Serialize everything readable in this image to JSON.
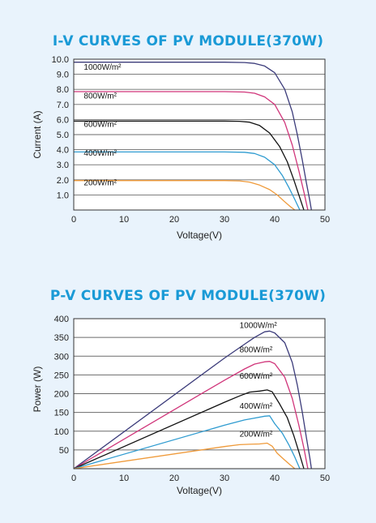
{
  "chart_data": [
    {
      "id": "iv",
      "type": "line",
      "title": "I-V CURVES OF PV MODULE(370W)",
      "xlabel": "Voltage(V)",
      "ylabel": "Current (A)",
      "xlim": [
        0,
        50
      ],
      "ylim": [
        0,
        10
      ],
      "xticks": [
        "0",
        "10",
        "20",
        "30",
        "40",
        "50"
      ],
      "yticks": [
        "1.0",
        "2.0",
        "3.0",
        "4.0",
        "5.0",
        "6.0",
        "7.0",
        "8.0",
        "9.0",
        "10.0"
      ],
      "grid": "horizontal",
      "series": [
        {
          "name": "1000W/m²",
          "color": "#3b3b7a",
          "label_x": 2,
          "label_y": 9.3,
          "points": [
            [
              0,
              9.8
            ],
            [
              30,
              9.8
            ],
            [
              34,
              9.78
            ],
            [
              36,
              9.72
            ],
            [
              38,
              9.55
            ],
            [
              40,
              9.1
            ],
            [
              42,
              8.0
            ],
            [
              43.5,
              6.5
            ],
            [
              44.5,
              5.0
            ],
            [
              45.5,
              3.3
            ],
            [
              46.3,
              1.8
            ],
            [
              47,
              0.6
            ],
            [
              47.3,
              0
            ]
          ]
        },
        {
          "name": "800W/m²",
          "color": "#d0357a",
          "label_x": 2,
          "label_y": 7.4,
          "points": [
            [
              0,
              7.85
            ],
            [
              30,
              7.85
            ],
            [
              34,
              7.82
            ],
            [
              36,
              7.74
            ],
            [
              38,
              7.5
            ],
            [
              40,
              7.0
            ],
            [
              42,
              5.8
            ],
            [
              43.5,
              4.3
            ],
            [
              44.8,
              2.6
            ],
            [
              45.8,
              1.2
            ],
            [
              46.6,
              0
            ]
          ]
        },
        {
          "name": "600W/m²",
          "color": "#111111",
          "label_x": 2,
          "label_y": 5.5,
          "points": [
            [
              0,
              5.9
            ],
            [
              30,
              5.9
            ],
            [
              33,
              5.88
            ],
            [
              35,
              5.82
            ],
            [
              37,
              5.6
            ],
            [
              39,
              5.1
            ],
            [
              41,
              4.2
            ],
            [
              42.5,
              3.2
            ],
            [
              43.8,
              2.0
            ],
            [
              44.8,
              1.0
            ],
            [
              45.8,
              0
            ]
          ]
        },
        {
          "name": "400W/m²",
          "color": "#2e9bd0",
          "label_x": 2,
          "label_y": 3.6,
          "points": [
            [
              0,
              3.85
            ],
            [
              30,
              3.85
            ],
            [
              34,
              3.83
            ],
            [
              36,
              3.75
            ],
            [
              38,
              3.5
            ],
            [
              40,
              3.0
            ],
            [
              41.5,
              2.3
            ],
            [
              42.8,
              1.5
            ],
            [
              44,
              0.7
            ],
            [
              45,
              0
            ]
          ]
        },
        {
          "name": "200W/m²",
          "color": "#ef9a3a",
          "label_x": 2,
          "label_y": 1.65,
          "points": [
            [
              0,
              1.95
            ],
            [
              30,
              1.95
            ],
            [
              33,
              1.93
            ],
            [
              35,
              1.85
            ],
            [
              37,
              1.65
            ],
            [
              39,
              1.35
            ],
            [
              40.5,
              1.0
            ],
            [
              41.8,
              0.6
            ],
            [
              43,
              0.25
            ],
            [
              44,
              0
            ]
          ]
        }
      ]
    },
    {
      "id": "pv",
      "type": "line",
      "title": "P-V CURVES OF PV MODULE(370W)",
      "xlabel": "Voltage(V)",
      "ylabel": "Power (W)",
      "xlim": [
        0,
        50
      ],
      "ylim": [
        0,
        400
      ],
      "xticks": [
        "0",
        "10",
        "20",
        "30",
        "40",
        "50"
      ],
      "yticks": [
        "50",
        "100",
        "150",
        "200",
        "250",
        "300",
        "350",
        "400"
      ],
      "grid": "horizontal",
      "series": [
        {
          "name": "1000W/m²",
          "color": "#3b3b7a",
          "label_x": 33,
          "label_y": 375,
          "points": [
            [
              0,
              0
            ],
            [
              30,
              295
            ],
            [
              34,
              332
            ],
            [
              36,
              350
            ],
            [
              38,
              365
            ],
            [
              39,
              367
            ],
            [
              40,
              362
            ],
            [
              42,
              336
            ],
            [
              43.5,
              283
            ],
            [
              44.5,
              223
            ],
            [
              45.5,
              150
            ],
            [
              46.3,
              83
            ],
            [
              47,
              28
            ],
            [
              47.3,
              0
            ]
          ]
        },
        {
          "name": "800W/m²",
          "color": "#d0357a",
          "label_x": 33,
          "label_y": 310,
          "points": [
            [
              0,
              0
            ],
            [
              30,
              236
            ],
            [
              34,
              266
            ],
            [
              36,
              279
            ],
            [
              38,
              285
            ],
            [
              39,
              286
            ],
            [
              40,
              280
            ],
            [
              42,
              244
            ],
            [
              43.5,
              187
            ],
            [
              44.8,
              116
            ],
            [
              45.8,
              55
            ],
            [
              46.6,
              0
            ]
          ]
        },
        {
          "name": "600W/m²",
          "color": "#111111",
          "label_x": 33,
          "label_y": 240,
          "points": [
            [
              0,
              0
            ],
            [
              30,
              177
            ],
            [
              33,
              194
            ],
            [
              35,
              204
            ],
            [
              37,
              207
            ],
            [
              38.5,
              210
            ],
            [
              39.5,
              205
            ],
            [
              41,
              172
            ],
            [
              42.5,
              136
            ],
            [
              43.8,
              88
            ],
            [
              44.8,
              45
            ],
            [
              45.8,
              0
            ]
          ]
        },
        {
          "name": "400W/m²",
          "color": "#2e9bd0",
          "label_x": 33,
          "label_y": 160,
          "points": [
            [
              0,
              0
            ],
            [
              30,
              116
            ],
            [
              34,
              130
            ],
            [
              36,
              135
            ],
            [
              38,
              140
            ],
            [
              39,
              141
            ],
            [
              40,
              120
            ],
            [
              41.5,
              95
            ],
            [
              42.8,
              64
            ],
            [
              44,
              31
            ],
            [
              45,
              0
            ]
          ]
        },
        {
          "name": "200W/m²",
          "color": "#ef9a3a",
          "label_x": 33,
          "label_y": 85,
          "points": [
            [
              0,
              0
            ],
            [
              30,
              59
            ],
            [
              33,
              64
            ],
            [
              35,
              65
            ],
            [
              37,
              66
            ],
            [
              38.5,
              68
            ],
            [
              39.5,
              60
            ],
            [
              40.5,
              41
            ],
            [
              41.8,
              25
            ],
            [
              43,
              11
            ],
            [
              44,
              0
            ]
          ]
        }
      ]
    }
  ]
}
